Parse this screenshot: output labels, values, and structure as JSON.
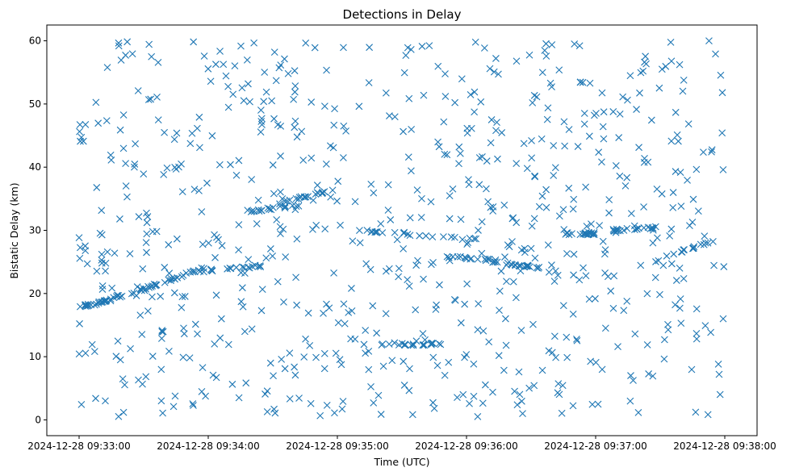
{
  "chart_data": {
    "type": "scatter",
    "title": "Detections in Delay",
    "xlabel": "Time (UTC)",
    "ylabel": "Bistatic Delay (km)",
    "marker": "x",
    "color": "#1f77b4",
    "grid": false,
    "xlim_seconds": [
      -15,
      315
    ],
    "ylim": [
      -2.5,
      62.5
    ],
    "x_start": "2024-12-28 09:33:00",
    "x_end": "2024-12-28 09:38:00",
    "x_ticks": [
      "2024-12-28 09:33:00",
      "2024-12-28 09:34:00",
      "2024-12-28 09:35:00",
      "2024-12-28 09:36:00",
      "2024-12-28 09:37:00",
      "2024-12-28 09:38:00"
    ],
    "y_ticks": [
      0,
      10,
      20,
      30,
      40,
      50,
      60
    ],
    "tracks": [
      {
        "t0": 0,
        "t1": 18,
        "y0": 17.8,
        "y1": 19.2
      },
      {
        "t0": 8,
        "t1": 38,
        "y0": 18.5,
        "y1": 21.5
      },
      {
        "t0": 28,
        "t1": 58,
        "y0": 20.5,
        "y1": 24.0
      },
      {
        "t0": 55,
        "t1": 88,
        "y0": 23.5,
        "y1": 24.5
      },
      {
        "t0": 78,
        "t1": 102,
        "y0": 33.0,
        "y1": 34.0
      },
      {
        "t0": 90,
        "t1": 118,
        "y0": 34.0,
        "y1": 36.5
      },
      {
        "t0": 120,
        "t1": 185,
        "y0": 30.2,
        "y1": 28.5
      },
      {
        "t0": 140,
        "t1": 168,
        "y0": 12.0,
        "y1": 12.0
      },
      {
        "t0": 168,
        "t1": 198,
        "y0": 26.0,
        "y1": 25.0
      },
      {
        "t0": 190,
        "t1": 215,
        "y0": 25.0,
        "y1": 24.0
      },
      {
        "t0": 225,
        "t1": 242,
        "y0": 29.5,
        "y1": 29.5
      },
      {
        "t0": 245,
        "t1": 300,
        "y0": 22.5,
        "y1": 29.0
      },
      {
        "t0": 248,
        "t1": 268,
        "y0": 30.0,
        "y1": 30.5
      }
    ],
    "n_tracks_points": 260,
    "n_noise_points": 720,
    "random_seed": 7
  }
}
